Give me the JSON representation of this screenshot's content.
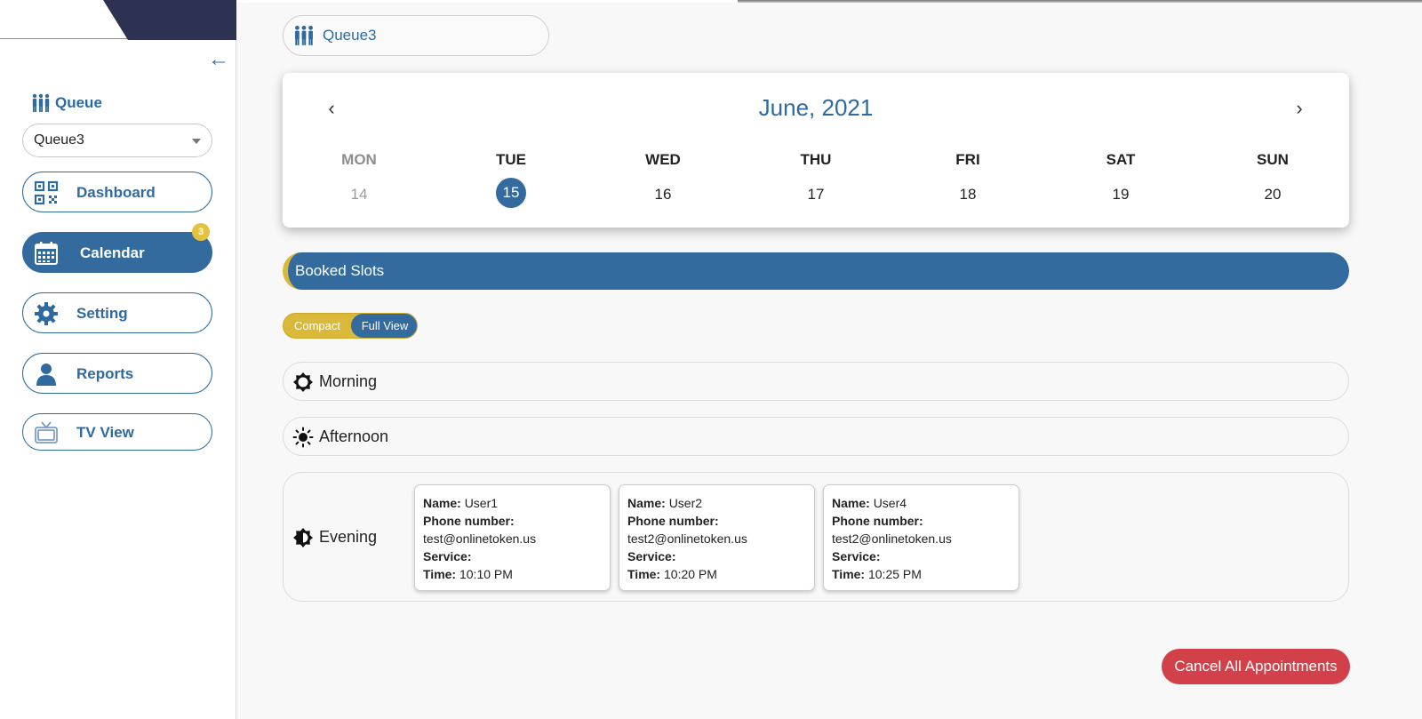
{
  "sidebar": {
    "queue_label": "Queue",
    "queue_select": {
      "value": "Queue3"
    },
    "nav": [
      {
        "label": "Dashboard"
      },
      {
        "label": "Calendar",
        "badge": "3"
      },
      {
        "label": "Setting"
      },
      {
        "label": "Reports"
      },
      {
        "label": "TV View"
      }
    ]
  },
  "main": {
    "queue_chip": "Queue3",
    "calendar": {
      "title": "June, 2021",
      "days": [
        {
          "name": "MON",
          "num": "14"
        },
        {
          "name": "TUE",
          "num": "15"
        },
        {
          "name": "WED",
          "num": "16"
        },
        {
          "name": "THU",
          "num": "17"
        },
        {
          "name": "FRI",
          "num": "18"
        },
        {
          "name": "SAT",
          "num": "19"
        },
        {
          "name": "SUN",
          "num": "20"
        }
      ]
    },
    "booked_slots_label": "Booked Slots",
    "view_toggle": {
      "compact": "Compact",
      "full": "Full View"
    },
    "sections": {
      "morning": "Morning",
      "afternoon": "Afternoon",
      "evening": "Evening"
    },
    "field_labels": {
      "name": "Name:",
      "phone": "Phone number:",
      "service": "Service:",
      "time": "Time:"
    },
    "slots": [
      {
        "name": "User1",
        "email": "test@onlinetoken.us",
        "time": "10:10 PM"
      },
      {
        "name": "User2",
        "email": "test2@onlinetoken.us",
        "time": "10:20 PM"
      },
      {
        "name": "User4",
        "email": "test2@onlinetoken.us",
        "time": "10:25 PM"
      }
    ],
    "cancel_all_label": "Cancel All Appointments"
  },
  "colors": {
    "primary": "#336b9e",
    "accent_yellow": "#d9b83a",
    "danger": "#d2404a",
    "logo_navy": "#2d3152"
  }
}
